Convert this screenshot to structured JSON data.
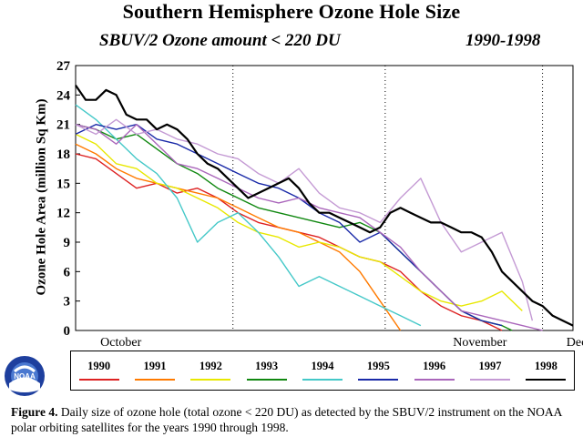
{
  "figure": {
    "title": "Southern Hemisphere Ozone Hole Size",
    "subtitle": "SBUV/2 Ozone amount < 220 DU",
    "years": "1990-1998",
    "caption_label": "Figure 4.",
    "caption_text": " Daily size of ozone hole (total ozone < 220 DU) as detected by the SBUV/2 instrument on the NOAA polar orbiting satellites for the years 1990 through 1998.",
    "logo_text": "NOAA"
  },
  "chart_data": {
    "type": "line",
    "title": "Southern Hemisphere Ozone Hole Size",
    "ylabel": "Ozone Hole Area (million Sq Km)",
    "xlabel": "",
    "ylim": [
      0,
      27
    ],
    "xlim": [
      0,
      98
    ],
    "yticks": [
      0,
      3,
      6,
      9,
      12,
      15,
      18,
      21,
      24,
      27
    ],
    "xticks": [
      {
        "x": 31,
        "label": "October"
      },
      {
        "x": 61,
        "label": "November"
      },
      {
        "x": 92,
        "label": "December"
      }
    ],
    "grid": "vertical dotted lines at month boundaries",
    "legend_position": "below plot",
    "x_units": "days starting September 1",
    "series": [
      {
        "name": "1990",
        "color": "#dd2222",
        "x": [
          0,
          4,
          8,
          12,
          16,
          20,
          24,
          28,
          32,
          36,
          40,
          44,
          48,
          52,
          56,
          60,
          64,
          68,
          72,
          76,
          80,
          84
        ],
        "y": [
          18,
          17.5,
          16,
          14.5,
          15,
          14,
          14.5,
          13.5,
          12,
          11,
          10.5,
          10,
          9.5,
          8.5,
          7.5,
          7,
          6,
          4,
          2.5,
          1.5,
          1,
          0
        ]
      },
      {
        "name": "1991",
        "color": "#ff7a00",
        "x": [
          0,
          4,
          8,
          12,
          16,
          20,
          24,
          28,
          32,
          36,
          40,
          44,
          48,
          52,
          56,
          60,
          62,
          64
        ],
        "y": [
          19,
          18,
          16.5,
          15.5,
          15,
          14.5,
          14,
          13.5,
          12.5,
          11.5,
          10.5,
          10,
          9,
          8,
          6,
          3,
          1.5,
          0
        ]
      },
      {
        "name": "1992",
        "color": "#e8e800",
        "x": [
          0,
          4,
          8,
          12,
          16,
          20,
          24,
          28,
          32,
          36,
          40,
          44,
          48,
          52,
          56,
          60,
          64,
          68,
          72,
          76,
          80,
          84,
          88
        ],
        "y": [
          20,
          19,
          17,
          16.5,
          15,
          14.5,
          13.5,
          12.5,
          11,
          10,
          9.5,
          8.5,
          9,
          8.5,
          7.5,
          7,
          5.5,
          4,
          3,
          2.5,
          3,
          4,
          2
        ]
      },
      {
        "name": "1993",
        "color": "#118811",
        "x": [
          0,
          4,
          8,
          12,
          16,
          20,
          24,
          28,
          32,
          36,
          40,
          44,
          48,
          52,
          56,
          60,
          64,
          68,
          72,
          76,
          80,
          84,
          86
        ],
        "y": [
          21,
          20.5,
          19.5,
          20,
          18.5,
          17,
          16,
          14.5,
          13.5,
          12.5,
          12,
          11.5,
          11,
          10.5,
          11,
          10,
          8,
          6,
          4,
          2,
          1,
          0.5,
          0
        ]
      },
      {
        "name": "1994",
        "color": "#44c8c8",
        "x": [
          0,
          4,
          8,
          12,
          16,
          20,
          24,
          28,
          32,
          36,
          40,
          44,
          48,
          52,
          56,
          60,
          64,
          68
        ],
        "y": [
          23,
          21.5,
          19.5,
          17.5,
          16,
          13.5,
          9,
          11,
          12,
          10,
          7.5,
          4.5,
          5.5,
          4.5,
          3.5,
          2.5,
          1.5,
          0.5
        ]
      },
      {
        "name": "1995",
        "color": "#1a2aa8",
        "x": [
          0,
          4,
          8,
          12,
          16,
          20,
          24,
          28,
          32,
          36,
          40,
          44,
          48,
          52,
          56,
          60,
          64,
          68,
          72,
          76,
          80,
          84
        ],
        "y": [
          20,
          21,
          20.5,
          21,
          19.5,
          19,
          18,
          17,
          16,
          15,
          14.5,
          13.5,
          12,
          11,
          9,
          10,
          8,
          6,
          4,
          2,
          1,
          0.5
        ]
      },
      {
        "name": "1996",
        "color": "#aa66bb",
        "x": [
          0,
          4,
          8,
          12,
          16,
          20,
          24,
          28,
          32,
          36,
          40,
          44,
          48,
          52,
          56,
          60,
          64,
          68,
          72,
          76,
          80,
          84,
          88,
          92
        ],
        "y": [
          21,
          20.5,
          19,
          21,
          19,
          17,
          16.5,
          15.5,
          14.5,
          13.5,
          13,
          13.5,
          12.5,
          12,
          11.5,
          10,
          8.5,
          6,
          4,
          2,
          1.5,
          1,
          0.5,
          0
        ]
      },
      {
        "name": "1997",
        "color": "#c49ad4",
        "x": [
          0,
          4,
          8,
          12,
          16,
          20,
          24,
          28,
          32,
          36,
          40,
          44,
          48,
          52,
          56,
          60,
          64,
          68,
          72,
          76,
          80,
          84,
          88,
          90
        ],
        "y": [
          21,
          20,
          21.5,
          20,
          20.5,
          19.5,
          19,
          18,
          17.5,
          16,
          15,
          16.5,
          14,
          12.5,
          12,
          11,
          13.5,
          15.5,
          11,
          8,
          9,
          10,
          5,
          1
        ]
      },
      {
        "name": "1998",
        "color": "#000000",
        "x": [
          0,
          2,
          4,
          6,
          8,
          10,
          12,
          14,
          16,
          18,
          20,
          22,
          24,
          26,
          28,
          30,
          32,
          34,
          36,
          38,
          40,
          42,
          44,
          46,
          48,
          50,
          52,
          54,
          56,
          58,
          60,
          62,
          64,
          66,
          68,
          70,
          72,
          74,
          76,
          78,
          80,
          82,
          84,
          86,
          88,
          90,
          92,
          94,
          96,
          98
        ],
        "y": [
          25,
          23.5,
          23.5,
          24.5,
          24,
          22,
          21.5,
          21.5,
          20.5,
          21,
          20.5,
          19.5,
          18,
          17,
          16.5,
          15.5,
          14.5,
          13.5,
          14,
          14.5,
          15,
          15.5,
          14.5,
          13,
          12,
          12,
          11.5,
          11,
          10.5,
          10,
          10.5,
          12,
          12.5,
          12,
          11.5,
          11,
          11,
          10.5,
          10,
          10,
          9.5,
          8,
          6,
          5,
          4,
          3,
          2.5,
          1.5,
          1,
          0.5
        ]
      }
    ]
  }
}
